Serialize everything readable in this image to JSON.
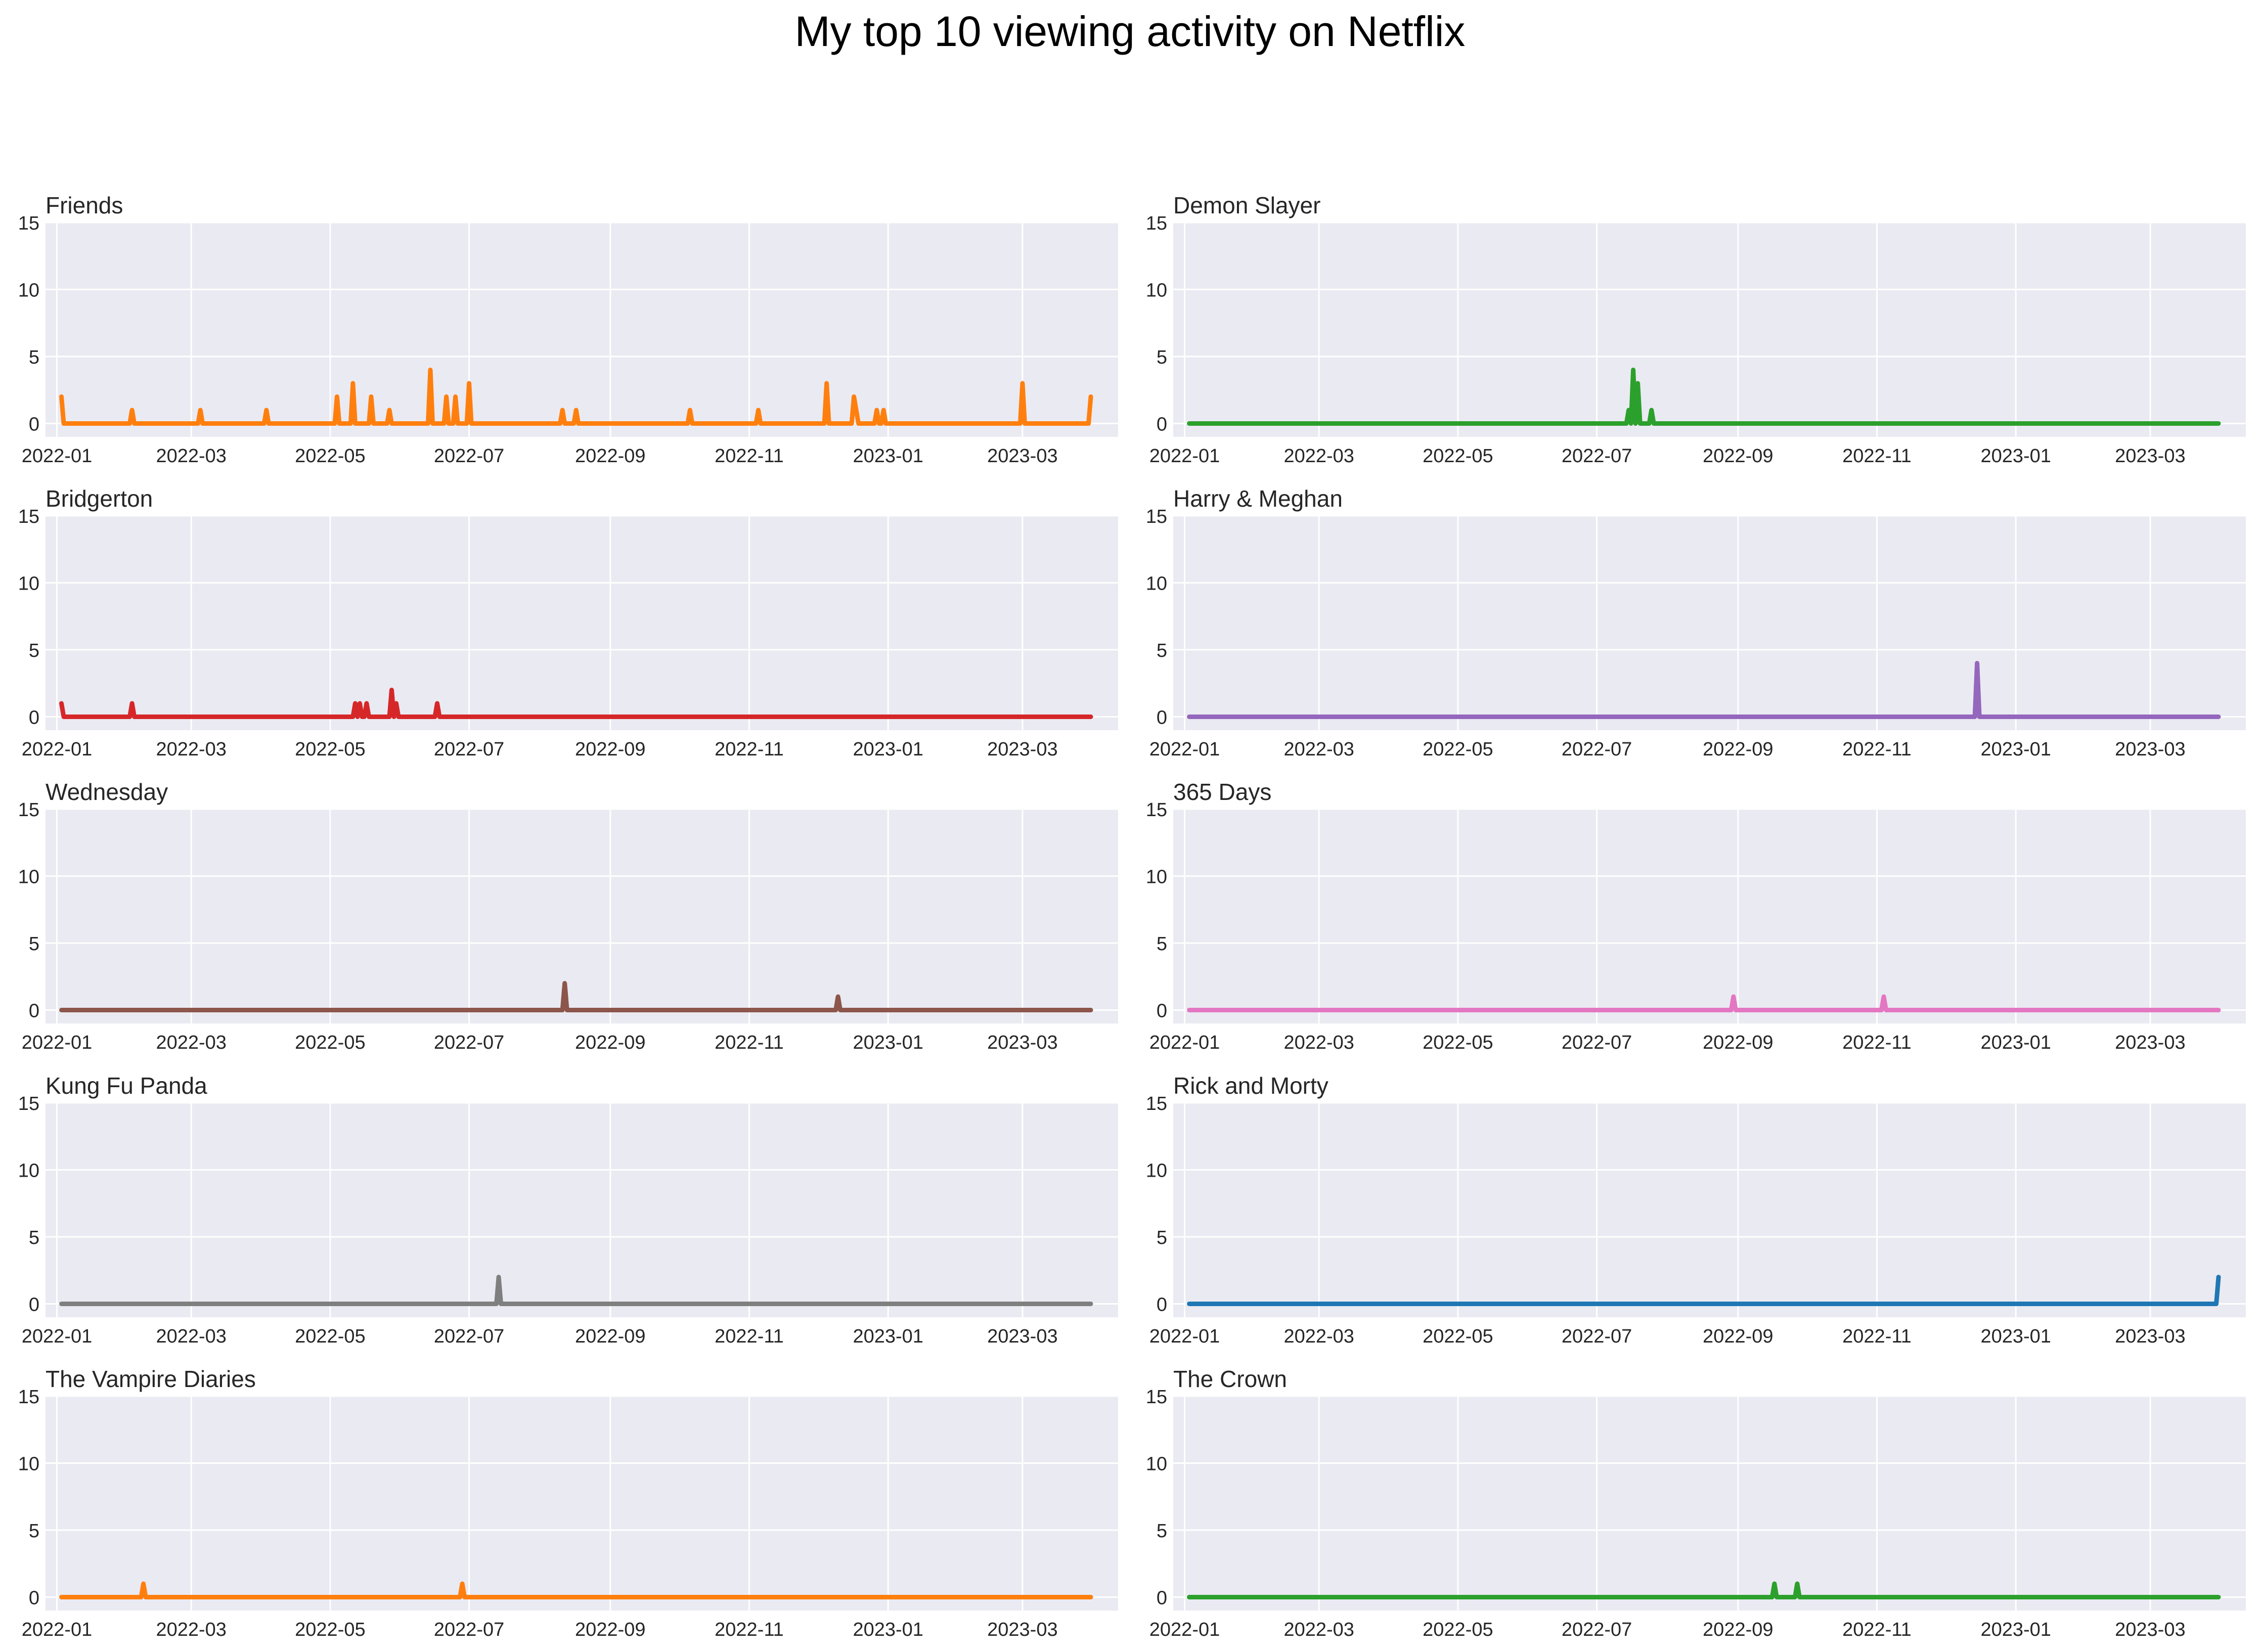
{
  "title": "My top 10 viewing activity on Netflix",
  "chart_data": [
    {
      "type": "line",
      "title": "Friends",
      "color": "#ff7f0e",
      "ylim": [
        -1,
        15
      ],
      "yticks": [
        0,
        5,
        10,
        15
      ],
      "xlim": [
        "2021-12-27",
        "2023-04-12"
      ],
      "xticks": [
        "2022-01",
        "2022-03",
        "2022-05",
        "2022-07",
        "2022-09",
        "2022-11",
        "2023-01",
        "2023-03"
      ],
      "grid": true,
      "start": "2022-01-03",
      "end": "2023-03-31",
      "points": [
        [
          "2022-01-03",
          2
        ],
        [
          "2022-02-03",
          1
        ],
        [
          "2022-03-05",
          1
        ],
        [
          "2022-04-03",
          1
        ],
        [
          "2022-05-04",
          2
        ],
        [
          "2022-05-11",
          3
        ],
        [
          "2022-05-19",
          2
        ],
        [
          "2022-05-27",
          1
        ],
        [
          "2022-06-14",
          4
        ],
        [
          "2022-06-21",
          2
        ],
        [
          "2022-06-25",
          2
        ],
        [
          "2022-07-01",
          3
        ],
        [
          "2022-08-11",
          1
        ],
        [
          "2022-08-17",
          1
        ],
        [
          "2022-10-06",
          1
        ],
        [
          "2022-11-05",
          1
        ],
        [
          "2022-12-05",
          3
        ],
        [
          "2022-12-17",
          2
        ],
        [
          "2022-12-18",
          1
        ],
        [
          "2022-12-27",
          1
        ],
        [
          "2022-12-30",
          1
        ],
        [
          "2023-03-01",
          3
        ],
        [
          "2023-03-31",
          2
        ]
      ]
    },
    {
      "type": "line",
      "title": "Demon Slayer",
      "color": "#2ca02c",
      "ylim": [
        -1,
        15
      ],
      "yticks": [
        0,
        5,
        10,
        15
      ],
      "xlim": [
        "2021-12-27",
        "2023-04-12"
      ],
      "xticks": [
        "2022-01",
        "2022-03",
        "2022-05",
        "2022-07",
        "2022-09",
        "2022-11",
        "2023-01",
        "2023-03"
      ],
      "grid": true,
      "start": "2022-01-03",
      "end": "2023-03-31",
      "points": [
        [
          "2022-07-15",
          1
        ],
        [
          "2022-07-17",
          4
        ],
        [
          "2022-07-19",
          3
        ],
        [
          "2022-07-25",
          1
        ]
      ]
    },
    {
      "type": "line",
      "title": "Bridgerton",
      "color": "#d62728",
      "ylim": [
        -1,
        15
      ],
      "yticks": [
        0,
        5,
        10,
        15
      ],
      "xlim": [
        "2021-12-27",
        "2023-04-12"
      ],
      "xticks": [
        "2022-01",
        "2022-03",
        "2022-05",
        "2022-07",
        "2022-09",
        "2022-11",
        "2023-01",
        "2023-03"
      ],
      "grid": true,
      "start": "2022-01-03",
      "end": "2023-03-31",
      "points": [
        [
          "2022-01-03",
          1
        ],
        [
          "2022-02-03",
          1
        ],
        [
          "2022-05-12",
          1
        ],
        [
          "2022-05-14",
          1
        ],
        [
          "2022-05-17",
          1
        ],
        [
          "2022-05-28",
          2
        ],
        [
          "2022-05-30",
          1
        ],
        [
          "2022-06-17",
          1
        ]
      ]
    },
    {
      "type": "line",
      "title": "Harry & Meghan",
      "color": "#9467bd",
      "ylim": [
        -1,
        15
      ],
      "yticks": [
        0,
        5,
        10,
        15
      ],
      "xlim": [
        "2021-12-27",
        "2023-04-12"
      ],
      "xticks": [
        "2022-01",
        "2022-03",
        "2022-05",
        "2022-07",
        "2022-09",
        "2022-11",
        "2023-01",
        "2023-03"
      ],
      "grid": true,
      "start": "2022-01-03",
      "end": "2023-03-31",
      "points": [
        [
          "2022-12-15",
          4
        ]
      ]
    },
    {
      "type": "line",
      "title": "Wednesday",
      "color": "#8c564b",
      "ylim": [
        -1,
        15
      ],
      "yticks": [
        0,
        5,
        10,
        15
      ],
      "xlim": [
        "2021-12-27",
        "2023-04-12"
      ],
      "xticks": [
        "2022-01",
        "2022-03",
        "2022-05",
        "2022-07",
        "2022-09",
        "2022-11",
        "2023-01",
        "2023-03"
      ],
      "grid": true,
      "start": "2022-01-03",
      "end": "2023-03-31",
      "points": [
        [
          "2022-08-12",
          2
        ],
        [
          "2022-12-10",
          1
        ]
      ]
    },
    {
      "type": "line",
      "title": "365 Days",
      "color": "#e377c2",
      "ylim": [
        -1,
        15
      ],
      "yticks": [
        0,
        5,
        10,
        15
      ],
      "xlim": [
        "2021-12-27",
        "2023-04-12"
      ],
      "xticks": [
        "2022-01",
        "2022-03",
        "2022-05",
        "2022-07",
        "2022-09",
        "2022-11",
        "2023-01",
        "2023-03"
      ],
      "grid": true,
      "start": "2022-01-03",
      "end": "2023-03-31",
      "points": [
        [
          "2022-08-30",
          1
        ],
        [
          "2022-11-04",
          1
        ]
      ]
    },
    {
      "type": "line",
      "title": "Kung Fu Panda",
      "color": "#7f7f7f",
      "ylim": [
        -1,
        15
      ],
      "yticks": [
        0,
        5,
        10,
        15
      ],
      "xlim": [
        "2021-12-27",
        "2023-04-12"
      ],
      "xticks": [
        "2022-01",
        "2022-03",
        "2022-05",
        "2022-07",
        "2022-09",
        "2022-11",
        "2023-01",
        "2023-03"
      ],
      "grid": true,
      "start": "2022-01-03",
      "end": "2023-03-31",
      "points": [
        [
          "2022-07-14",
          2
        ]
      ]
    },
    {
      "type": "line",
      "title": "Rick and Morty",
      "color": "#1f77b4",
      "ylim": [
        -1,
        15
      ],
      "yticks": [
        0,
        5,
        10,
        15
      ],
      "xlim": [
        "2021-12-27",
        "2023-04-12"
      ],
      "xticks": [
        "2022-01",
        "2022-03",
        "2022-05",
        "2022-07",
        "2022-09",
        "2022-11",
        "2023-01",
        "2023-03"
      ],
      "grid": true,
      "start": "2022-01-03",
      "end": "2023-03-31",
      "points": [
        [
          "2023-03-31",
          2
        ]
      ]
    },
    {
      "type": "line",
      "title": "The Vampire Diaries",
      "color": "#ff7f0e",
      "ylim": [
        -1,
        15
      ],
      "yticks": [
        0,
        5,
        10,
        15
      ],
      "xlim": [
        "2021-12-27",
        "2023-04-12"
      ],
      "xticks": [
        "2022-01",
        "2022-03",
        "2022-05",
        "2022-07",
        "2022-09",
        "2022-11",
        "2023-01",
        "2023-03"
      ],
      "grid": true,
      "start": "2022-01-03",
      "end": "2023-03-31",
      "points": [
        [
          "2022-02-08",
          1
        ],
        [
          "2022-06-28",
          1
        ]
      ]
    },
    {
      "type": "line",
      "title": "The Crown",
      "color": "#2ca02c",
      "ylim": [
        -1,
        15
      ],
      "yticks": [
        0,
        5,
        10,
        15
      ],
      "xlim": [
        "2021-12-27",
        "2023-04-12"
      ],
      "xticks": [
        "2022-01",
        "2022-03",
        "2022-05",
        "2022-07",
        "2022-09",
        "2022-11",
        "2023-01",
        "2023-03"
      ],
      "grid": true,
      "start": "2022-01-03",
      "end": "2023-03-31",
      "points": [
        [
          "2022-09-17",
          1
        ],
        [
          "2022-09-27",
          1
        ]
      ]
    }
  ]
}
